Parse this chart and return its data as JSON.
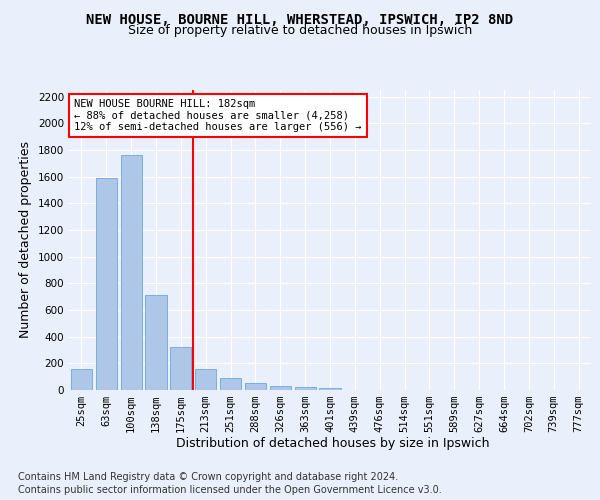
{
  "title_line1": "NEW HOUSE, BOURNE HILL, WHERSTEAD, IPSWICH, IP2 8ND",
  "title_line2": "Size of property relative to detached houses in Ipswich",
  "xlabel": "Distribution of detached houses by size in Ipswich",
  "ylabel": "Number of detached properties",
  "categories": [
    "25sqm",
    "63sqm",
    "100sqm",
    "138sqm",
    "175sqm",
    "213sqm",
    "251sqm",
    "288sqm",
    "326sqm",
    "363sqm",
    "401sqm",
    "439sqm",
    "476sqm",
    "514sqm",
    "551sqm",
    "589sqm",
    "627sqm",
    "664sqm",
    "702sqm",
    "739sqm",
    "777sqm"
  ],
  "values": [
    160,
    1590,
    1760,
    710,
    320,
    160,
    88,
    53,
    30,
    22,
    18,
    0,
    0,
    0,
    0,
    0,
    0,
    0,
    0,
    0,
    0
  ],
  "bar_color": "#aec6e8",
  "bar_edge_color": "#5a9fd4",
  "vline_x": 4.5,
  "vline_color": "red",
  "annotation_text": "NEW HOUSE BOURNE HILL: 182sqm\n← 88% of detached houses are smaller (4,258)\n12% of semi-detached houses are larger (556) →",
  "annotation_box_color": "white",
  "annotation_box_edge": "red",
  "ylim": [
    0,
    2250
  ],
  "yticks": [
    0,
    200,
    400,
    600,
    800,
    1000,
    1200,
    1400,
    1600,
    1800,
    2000,
    2200
  ],
  "bg_color": "#eaf0fb",
  "plot_bg_color": "#eaf0fb",
  "footer_line1": "Contains HM Land Registry data © Crown copyright and database right 2024.",
  "footer_line2": "Contains public sector information licensed under the Open Government Licence v3.0.",
  "title_fontsize": 10,
  "subtitle_fontsize": 9,
  "axis_label_fontsize": 9,
  "tick_fontsize": 7.5,
  "footer_fontsize": 7
}
